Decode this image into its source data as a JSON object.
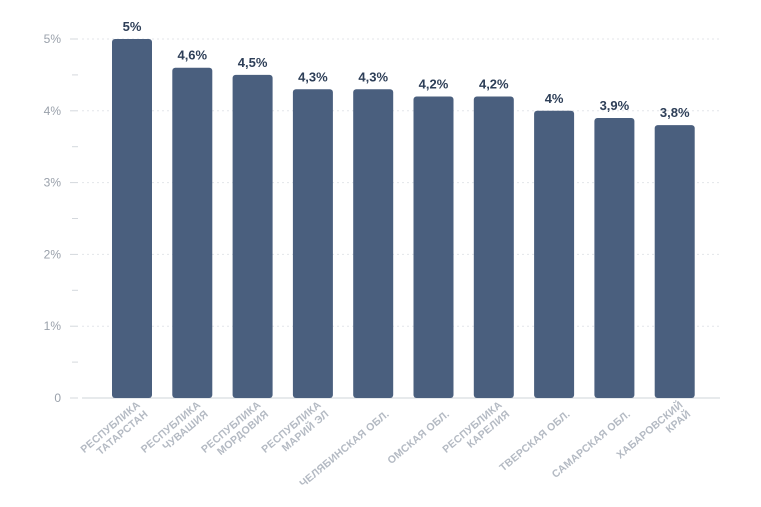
{
  "chart_data": {
    "type": "bar",
    "categories": [
      [
        "РЕСПУБЛИКА",
        "ТАТАРСТАН"
      ],
      [
        "РЕСПУБЛИКА",
        "ЧУВАШИЯ"
      ],
      [
        "РЕСПУБЛИКА",
        "МОРДОВИЯ"
      ],
      [
        "РЕСПУБЛИКА",
        "МАРИЙ ЭЛ"
      ],
      [
        "ЧЕЛЯБИНСКАЯ ОБЛ."
      ],
      [
        "ОМСКАЯ ОБЛ."
      ],
      [
        "РЕСПУБЛИКА",
        "КАРЕЛИЯ"
      ],
      [
        "ТВЕРСКАЯ ОБЛ."
      ],
      [
        "САМАРСКАЯ ОБЛ."
      ],
      [
        "ХАБАРОВСКИЙ",
        "КРАЙ"
      ]
    ],
    "values": [
      5,
      4.6,
      4.5,
      4.3,
      4.3,
      4.2,
      4.2,
      4,
      3.9,
      3.8
    ],
    "value_labels": [
      "5%",
      "4,6%",
      "4,5%",
      "4,3%",
      "4,3%",
      "4,2%",
      "4,2%",
      "4%",
      "3,9%",
      "3,8%"
    ],
    "ylim": [
      0,
      5
    ],
    "yticks": [
      {
        "value": 0,
        "label": "0"
      },
      {
        "value": 1,
        "label": "1%"
      },
      {
        "value": 2,
        "label": "2%"
      },
      {
        "value": 3,
        "label": "3%"
      },
      {
        "value": 4,
        "label": "4%"
      },
      {
        "value": 5,
        "label": "5%"
      }
    ],
    "grid": true,
    "colors": {
      "bar": "#4a5f7e",
      "value_label": "#2e3f58",
      "category_label": "#b4bac3",
      "tick_label": "#9aa1ab"
    }
  }
}
